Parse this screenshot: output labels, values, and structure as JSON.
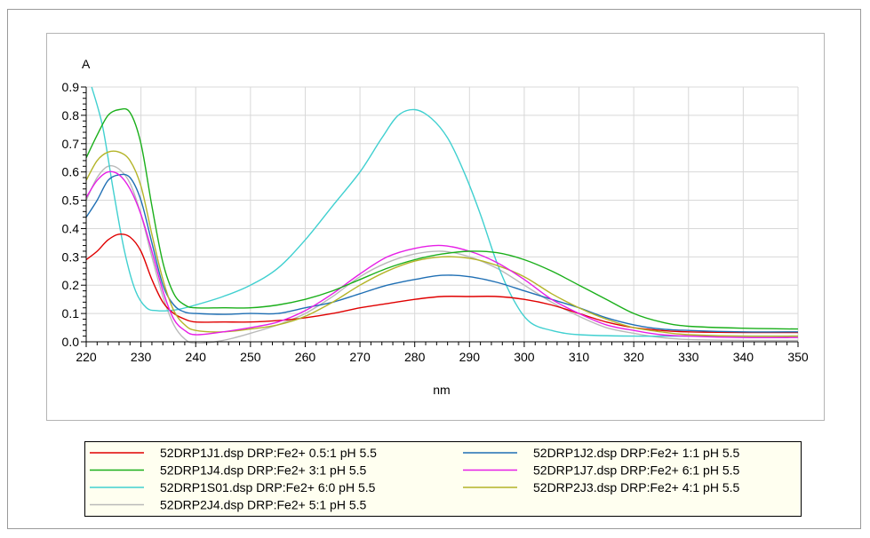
{
  "chart_data": {
    "type": "line",
    "title": "",
    "xlabel": "nm",
    "ylabel": "A",
    "xlim": [
      220,
      350
    ],
    "ylim": [
      0,
      0.9
    ],
    "x_ticks": [
      220,
      230,
      240,
      250,
      260,
      270,
      280,
      290,
      300,
      310,
      320,
      330,
      340,
      350
    ],
    "y_ticks": [
      0.0,
      0.1,
      0.2,
      0.3,
      0.4,
      0.5,
      0.6,
      0.7,
      0.8,
      0.9
    ],
    "x_tick_labels": [
      "220",
      "230",
      "240",
      "250",
      "260",
      "270",
      "280",
      "290",
      "300",
      "310",
      "320",
      "330",
      "340",
      "350"
    ],
    "y_tick_labels": [
      "0.0",
      "0.1",
      "0.2",
      "0.3",
      "0.4",
      "0.5",
      "0.6",
      "0.7",
      "0.8",
      "0.9"
    ],
    "grid": true,
    "legend_position": "bottom",
    "series": [
      {
        "name": "52DRP1J1.dsp   DRP:Fe2+ 0.5:1 pH 5.5",
        "color": "#e00000",
        "points": [
          [
            220,
            0.29
          ],
          [
            222,
            0.32
          ],
          [
            224,
            0.36
          ],
          [
            226,
            0.38
          ],
          [
            228,
            0.37
          ],
          [
            230,
            0.32
          ],
          [
            232,
            0.22
          ],
          [
            234,
            0.14
          ],
          [
            236,
            0.1
          ],
          [
            238,
            0.08
          ],
          [
            240,
            0.07
          ],
          [
            245,
            0.07
          ],
          [
            250,
            0.07
          ],
          [
            255,
            0.075
          ],
          [
            260,
            0.085
          ],
          [
            265,
            0.1
          ],
          [
            270,
            0.12
          ],
          [
            275,
            0.135
          ],
          [
            280,
            0.15
          ],
          [
            285,
            0.16
          ],
          [
            290,
            0.16
          ],
          [
            295,
            0.16
          ],
          [
            300,
            0.15
          ],
          [
            305,
            0.13
          ],
          [
            310,
            0.1
          ],
          [
            315,
            0.07
          ],
          [
            320,
            0.05
          ],
          [
            325,
            0.04
          ],
          [
            330,
            0.035
          ],
          [
            340,
            0.033
          ],
          [
            350,
            0.033
          ]
        ]
      },
      {
        "name": "52DRP1J2.dsp   DRP:Fe2+ 1:1 pH 5.5",
        "color": "#1f6fb4",
        "points": [
          [
            220,
            0.44
          ],
          [
            222,
            0.5
          ],
          [
            224,
            0.57
          ],
          [
            226,
            0.59
          ],
          [
            228,
            0.58
          ],
          [
            230,
            0.5
          ],
          [
            232,
            0.35
          ],
          [
            234,
            0.2
          ],
          [
            236,
            0.13
          ],
          [
            238,
            0.105
          ],
          [
            240,
            0.1
          ],
          [
            245,
            0.097
          ],
          [
            250,
            0.1
          ],
          [
            255,
            0.1
          ],
          [
            260,
            0.12
          ],
          [
            265,
            0.14
          ],
          [
            270,
            0.17
          ],
          [
            275,
            0.2
          ],
          [
            280,
            0.22
          ],
          [
            285,
            0.235
          ],
          [
            290,
            0.23
          ],
          [
            295,
            0.21
          ],
          [
            300,
            0.18
          ],
          [
            305,
            0.15
          ],
          [
            310,
            0.12
          ],
          [
            315,
            0.085
          ],
          [
            320,
            0.06
          ],
          [
            325,
            0.045
          ],
          [
            330,
            0.04
          ],
          [
            340,
            0.035
          ],
          [
            350,
            0.035
          ]
        ]
      },
      {
        "name": "52DRP1J4.dsp   DRP:Fe2+ 3:1 pH 5.5",
        "color": "#1aaf1a",
        "points": [
          [
            220,
            0.65
          ],
          [
            222,
            0.73
          ],
          [
            224,
            0.8
          ],
          [
            226,
            0.82
          ],
          [
            228,
            0.81
          ],
          [
            230,
            0.7
          ],
          [
            232,
            0.48
          ],
          [
            234,
            0.28
          ],
          [
            236,
            0.17
          ],
          [
            238,
            0.13
          ],
          [
            240,
            0.12
          ],
          [
            245,
            0.12
          ],
          [
            250,
            0.12
          ],
          [
            255,
            0.13
          ],
          [
            260,
            0.15
          ],
          [
            265,
            0.18
          ],
          [
            270,
            0.22
          ],
          [
            275,
            0.26
          ],
          [
            280,
            0.29
          ],
          [
            285,
            0.31
          ],
          [
            290,
            0.32
          ],
          [
            295,
            0.315
          ],
          [
            300,
            0.29
          ],
          [
            305,
            0.25
          ],
          [
            310,
            0.2
          ],
          [
            315,
            0.15
          ],
          [
            320,
            0.1
          ],
          [
            325,
            0.07
          ],
          [
            330,
            0.055
          ],
          [
            340,
            0.048
          ],
          [
            350,
            0.045
          ]
        ]
      },
      {
        "name": "52DRP1J7.dsp   DRP:Fe2+ 6:1 pH 5.5",
        "color": "#e61ee6",
        "points": [
          [
            220,
            0.51
          ],
          [
            222,
            0.57
          ],
          [
            224,
            0.6
          ],
          [
            226,
            0.59
          ],
          [
            228,
            0.54
          ],
          [
            230,
            0.45
          ],
          [
            232,
            0.32
          ],
          [
            234,
            0.18
          ],
          [
            236,
            0.08
          ],
          [
            238,
            0.04
          ],
          [
            240,
            0.025
          ],
          [
            245,
            0.035
          ],
          [
            250,
            0.05
          ],
          [
            255,
            0.07
          ],
          [
            260,
            0.11
          ],
          [
            265,
            0.17
          ],
          [
            270,
            0.24
          ],
          [
            275,
            0.3
          ],
          [
            280,
            0.33
          ],
          [
            285,
            0.34
          ],
          [
            290,
            0.32
          ],
          [
            295,
            0.28
          ],
          [
            300,
            0.22
          ],
          [
            305,
            0.15
          ],
          [
            310,
            0.1
          ],
          [
            315,
            0.06
          ],
          [
            320,
            0.04
          ],
          [
            325,
            0.025
          ],
          [
            330,
            0.02
          ],
          [
            340,
            0.015
          ],
          [
            350,
            0.015
          ]
        ]
      },
      {
        "name": "52DRP1S01.dsp   DRP:Fe2+ 6:0 pH 5.5",
        "color": "#40d0d0",
        "points": [
          [
            221,
            0.9
          ],
          [
            223,
            0.76
          ],
          [
            225,
            0.53
          ],
          [
            227,
            0.32
          ],
          [
            229,
            0.18
          ],
          [
            231,
            0.12
          ],
          [
            233,
            0.11
          ],
          [
            235,
            0.11
          ],
          [
            237,
            0.115
          ],
          [
            240,
            0.13
          ],
          [
            245,
            0.16
          ],
          [
            250,
            0.2
          ],
          [
            255,
            0.26
          ],
          [
            260,
            0.36
          ],
          [
            265,
            0.48
          ],
          [
            270,
            0.6
          ],
          [
            274,
            0.72
          ],
          [
            277,
            0.8
          ],
          [
            280,
            0.82
          ],
          [
            283,
            0.79
          ],
          [
            286,
            0.72
          ],
          [
            289,
            0.6
          ],
          [
            292,
            0.45
          ],
          [
            295,
            0.28
          ],
          [
            298,
            0.15
          ],
          [
            301,
            0.07
          ],
          [
            305,
            0.04
          ],
          [
            310,
            0.025
          ],
          [
            320,
            0.02
          ],
          [
            330,
            0.02
          ],
          [
            340,
            0.02
          ],
          [
            350,
            0.02
          ]
        ]
      },
      {
        "name": "52DRP2J3.dsp   DRP:Fe2+ 4:1 pH 5.5",
        "color": "#b4b428",
        "points": [
          [
            220,
            0.57
          ],
          [
            222,
            0.64
          ],
          [
            224,
            0.67
          ],
          [
            226,
            0.67
          ],
          [
            228,
            0.64
          ],
          [
            230,
            0.55
          ],
          [
            232,
            0.38
          ],
          [
            234,
            0.22
          ],
          [
            236,
            0.11
          ],
          [
            238,
            0.06
          ],
          [
            240,
            0.04
          ],
          [
            245,
            0.035
          ],
          [
            250,
            0.045
          ],
          [
            255,
            0.06
          ],
          [
            260,
            0.09
          ],
          [
            265,
            0.14
          ],
          [
            270,
            0.2
          ],
          [
            275,
            0.25
          ],
          [
            280,
            0.285
          ],
          [
            285,
            0.3
          ],
          [
            290,
            0.295
          ],
          [
            295,
            0.27
          ],
          [
            300,
            0.23
          ],
          [
            305,
            0.17
          ],
          [
            310,
            0.12
          ],
          [
            315,
            0.08
          ],
          [
            320,
            0.05
          ],
          [
            325,
            0.035
          ],
          [
            330,
            0.025
          ],
          [
            340,
            0.02
          ],
          [
            350,
            0.02
          ]
        ]
      },
      {
        "name": "52DRP2J4.dsp   DRP:Fe2+ 5:1 pH 5.5",
        "color": "#b9b9b9",
        "points": [
          [
            220,
            0.5
          ],
          [
            222,
            0.58
          ],
          [
            224,
            0.62
          ],
          [
            226,
            0.61
          ],
          [
            228,
            0.56
          ],
          [
            230,
            0.45
          ],
          [
            232,
            0.3
          ],
          [
            234,
            0.16
          ],
          [
            236,
            0.06
          ],
          [
            238,
            0.01
          ],
          [
            240,
            -0.005
          ],
          [
            245,
            0.005
          ],
          [
            250,
            0.03
          ],
          [
            255,
            0.06
          ],
          [
            260,
            0.1
          ],
          [
            265,
            0.16
          ],
          [
            270,
            0.23
          ],
          [
            275,
            0.28
          ],
          [
            280,
            0.31
          ],
          [
            285,
            0.32
          ],
          [
            290,
            0.3
          ],
          [
            295,
            0.26
          ],
          [
            300,
            0.2
          ],
          [
            305,
            0.14
          ],
          [
            310,
            0.09
          ],
          [
            315,
            0.05
          ],
          [
            320,
            0.03
          ],
          [
            325,
            0.015
          ],
          [
            330,
            0.008
          ],
          [
            340,
            0.005
          ],
          [
            350,
            0.005
          ]
        ]
      }
    ],
    "legend_order": [
      0,
      1,
      2,
      3,
      4,
      5,
      6
    ]
  }
}
